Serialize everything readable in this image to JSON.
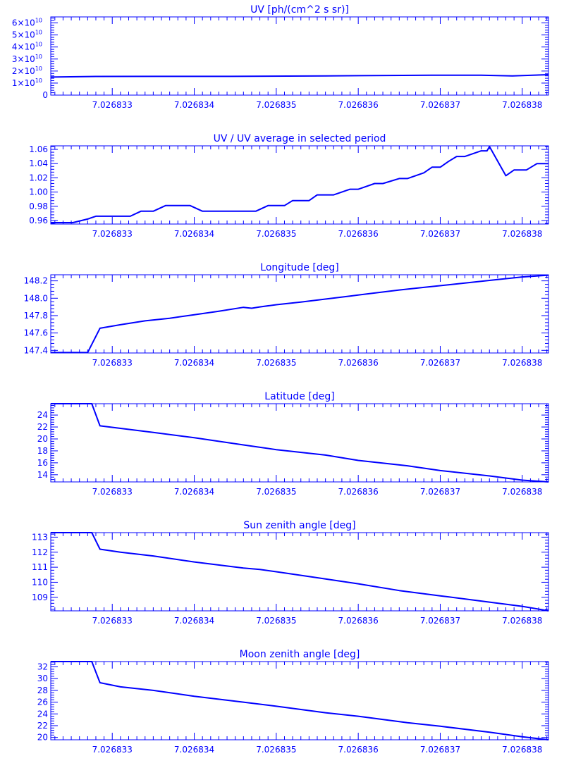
{
  "style": {
    "color": "#0000ff",
    "background": "#ffffff"
  },
  "chart_data": [
    {
      "type": "line",
      "title": "UV [ph/(cm^2 s sr)]",
      "xlim": [
        7.02683225,
        7.02683832
      ],
      "ylim": [
        0,
        65000000000
      ],
      "x_ticks": [
        7.026833,
        7.026834,
        7.026835,
        7.026836,
        7.026837,
        7.026838
      ],
      "x_tick_labels": [
        "7.026833",
        "7.026834",
        "7.026835",
        "7.026836",
        "7.026837",
        "7.026838"
      ],
      "y_ticks": [
        0,
        10000000000,
        20000000000,
        30000000000,
        40000000000,
        50000000000,
        60000000000
      ],
      "y_tick_labels": [
        {
          "mant": "0",
          "exp": ""
        },
        {
          "mant": "1×10",
          "exp": "10"
        },
        {
          "mant": "2×10",
          "exp": "10"
        },
        {
          "mant": "3×10",
          "exp": "10"
        },
        {
          "mant": "4×10",
          "exp": "10"
        },
        {
          "mant": "5×10",
          "exp": "10"
        },
        {
          "mant": "6×10",
          "exp": "10"
        }
      ],
      "x": [
        7.02683225,
        7.0268328,
        7.02683355,
        7.026834,
        7.02683445,
        7.0268356,
        7.0268369,
        7.0268375,
        7.02683788,
        7.02683832
      ],
      "y": [
        15000000000,
        15500000000,
        15600000000,
        15600000000,
        15600000000,
        16000000000,
        16500000000,
        16500000000,
        16000000000,
        17000000000
      ]
    },
    {
      "type": "line",
      "title": "UV / UV average in selected period",
      "xlim": [
        7.02683225,
        7.02683832
      ],
      "ylim": [
        0.955,
        1.065
      ],
      "x_ticks": [
        7.026833,
        7.026834,
        7.026835,
        7.026836,
        7.026837,
        7.026838
      ],
      "x_tick_labels": [
        "7.026833",
        "7.026834",
        "7.026835",
        "7.026836",
        "7.026837",
        "7.026838"
      ],
      "y_ticks": [
        0.96,
        0.98,
        1.0,
        1.02,
        1.04,
        1.06
      ],
      "y_tick_labels": [
        "0.96",
        "0.98",
        "1.00",
        "1.02",
        "1.04",
        "1.06"
      ],
      "x": [
        7.02683225,
        7.02683252,
        7.0268327,
        7.0268328,
        7.02683293,
        7.0268331,
        7.02683322,
        7.02683335,
        7.0268335,
        7.02683365,
        7.02683385,
        7.02683395,
        7.0268341,
        7.0268343,
        7.02683445,
        7.0268346,
        7.02683475,
        7.0268349,
        7.026835,
        7.0268351,
        7.0268352,
        7.0268354,
        7.0268355,
        7.0268357,
        7.0268359,
        7.026836,
        7.0268362,
        7.0268363,
        7.0268365,
        7.0268366,
        7.0268368,
        7.0268369,
        7.026837,
        7.0268371,
        7.0268372,
        7.0268373,
        7.0268375,
        7.02683757,
        7.0268376,
        7.0268378,
        7.0268379,
        7.02683805,
        7.02683818,
        7.02683832
      ],
      "y": [
        0.957,
        0.957,
        0.962,
        0.966,
        0.966,
        0.966,
        0.966,
        0.973,
        0.973,
        0.981,
        0.981,
        0.981,
        0.973,
        0.973,
        0.973,
        0.973,
        0.973,
        0.981,
        0.981,
        0.981,
        0.988,
        0.988,
        0.996,
        0.996,
        1.004,
        1.004,
        1.012,
        1.012,
        1.019,
        1.019,
        1.027,
        1.035,
        1.035,
        1.043,
        1.05,
        1.05,
        1.058,
        1.058,
        1.064,
        1.023,
        1.031,
        1.031,
        1.04,
        1.04
      ]
    },
    {
      "type": "line",
      "title": "Longitude [deg]",
      "xlim": [
        7.02683225,
        7.02683832
      ],
      "ylim": [
        147.37,
        148.27
      ],
      "x_ticks": [
        7.026833,
        7.026834,
        7.026835,
        7.026836,
        7.026837,
        7.026838
      ],
      "x_tick_labels": [
        "7.026833",
        "7.026834",
        "7.026835",
        "7.026836",
        "7.026837",
        "7.026838"
      ],
      "y_ticks": [
        147.4,
        147.6,
        147.8,
        148.0,
        148.2
      ],
      "y_tick_labels": [
        "147.4",
        "147.6",
        "147.8",
        "148.0",
        "148.2"
      ],
      "x": [
        7.02683225,
        7.0268326,
        7.0268327,
        7.02683285,
        7.0268331,
        7.0268334,
        7.0268337,
        7.026834,
        7.0268343,
        7.0268346,
        7.0268347,
        7.0268348,
        7.026835,
        7.0268353,
        7.0268356,
        7.0268359,
        7.0268362,
        7.0268365,
        7.0268368,
        7.0268371,
        7.0268374,
        7.0268377,
        7.026838,
        7.02683832
      ],
      "y": [
        147.375,
        147.375,
        147.375,
        147.655,
        147.695,
        147.74,
        147.77,
        147.81,
        147.85,
        147.895,
        147.885,
        147.9,
        147.925,
        147.955,
        147.99,
        148.025,
        148.06,
        148.095,
        148.125,
        148.155,
        148.185,
        148.215,
        148.245,
        148.265
      ]
    },
    {
      "type": "line",
      "title": "Latitude [deg]",
      "xlim": [
        7.02683225,
        7.02683832
      ],
      "ylim": [
        12.8,
        25.9
      ],
      "x_ticks": [
        7.026833,
        7.026834,
        7.026835,
        7.026836,
        7.026837,
        7.026838
      ],
      "x_tick_labels": [
        "7.026833",
        "7.026834",
        "7.026835",
        "7.026836",
        "7.026837",
        "7.026838"
      ],
      "y_ticks": [
        14,
        16,
        18,
        20,
        22,
        24
      ],
      "y_tick_labels": [
        "14",
        "16",
        "18",
        "20",
        "22",
        "24"
      ],
      "x": [
        7.02683225,
        7.0268326,
        7.02683275,
        7.02683285,
        7.0268335,
        7.026834,
        7.0268346,
        7.026835,
        7.0268356,
        7.026836,
        7.0268366,
        7.026837,
        7.0268376,
        7.026838,
        7.02683832
      ],
      "y": [
        25.9,
        25.9,
        25.9,
        22.2,
        21.1,
        20.2,
        19.0,
        18.2,
        17.3,
        16.4,
        15.5,
        14.7,
        13.8,
        13.1,
        12.8
      ]
    },
    {
      "type": "line",
      "title": "Sun zenith angle [deg]",
      "xlim": [
        7.02683225,
        7.02683832
      ],
      "ylim": [
        108.1,
        113.3
      ],
      "x_ticks": [
        7.026833,
        7.026834,
        7.026835,
        7.026836,
        7.026837,
        7.026838
      ],
      "x_tick_labels": [
        "7.026833",
        "7.026834",
        "7.026835",
        "7.026836",
        "7.026837",
        "7.026838"
      ],
      "y_ticks": [
        109,
        110,
        111,
        112,
        113
      ],
      "y_tick_labels": [
        "109",
        "110",
        "111",
        "112",
        "113"
      ],
      "x": [
        7.02683225,
        7.0268326,
        7.02683275,
        7.02683285,
        7.0268331,
        7.0268335,
        7.026834,
        7.0268346,
        7.0268348,
        7.026835,
        7.0268355,
        7.026836,
        7.0268365,
        7.026837,
        7.0268375,
        7.026838,
        7.02683832
      ],
      "y": [
        113.3,
        113.3,
        113.3,
        112.2,
        112.0,
        111.75,
        111.35,
        110.95,
        110.85,
        110.7,
        110.3,
        109.9,
        109.45,
        109.1,
        108.75,
        108.4,
        108.1
      ]
    },
    {
      "type": "line",
      "title": "Moon zenith angle [deg]",
      "xlim": [
        7.02683225,
        7.02683832
      ],
      "ylim": [
        19.6,
        32.9
      ],
      "x_ticks": [
        7.026833,
        7.026834,
        7.026835,
        7.026836,
        7.026837,
        7.026838
      ],
      "x_tick_labels": [
        "7.026833",
        "7.026834",
        "7.026835",
        "7.026836",
        "7.026837",
        "7.026838"
      ],
      "y_ticks": [
        20,
        22,
        24,
        26,
        28,
        30,
        32
      ],
      "y_tick_labels": [
        "20",
        "22",
        "24",
        "26",
        "28",
        "30",
        "32"
      ],
      "x": [
        7.02683225,
        7.0268326,
        7.02683275,
        7.02683285,
        7.0268331,
        7.0268335,
        7.026834,
        7.0268346,
        7.026835,
        7.0268356,
        7.026836,
        7.0268366,
        7.026837,
        7.0268376,
        7.026838,
        7.02683832
      ],
      "y": [
        32.9,
        32.9,
        32.9,
        29.3,
        28.6,
        28.0,
        27.0,
        26.0,
        25.3,
        24.2,
        23.6,
        22.5,
        21.9,
        20.9,
        20.1,
        19.6
      ]
    }
  ]
}
